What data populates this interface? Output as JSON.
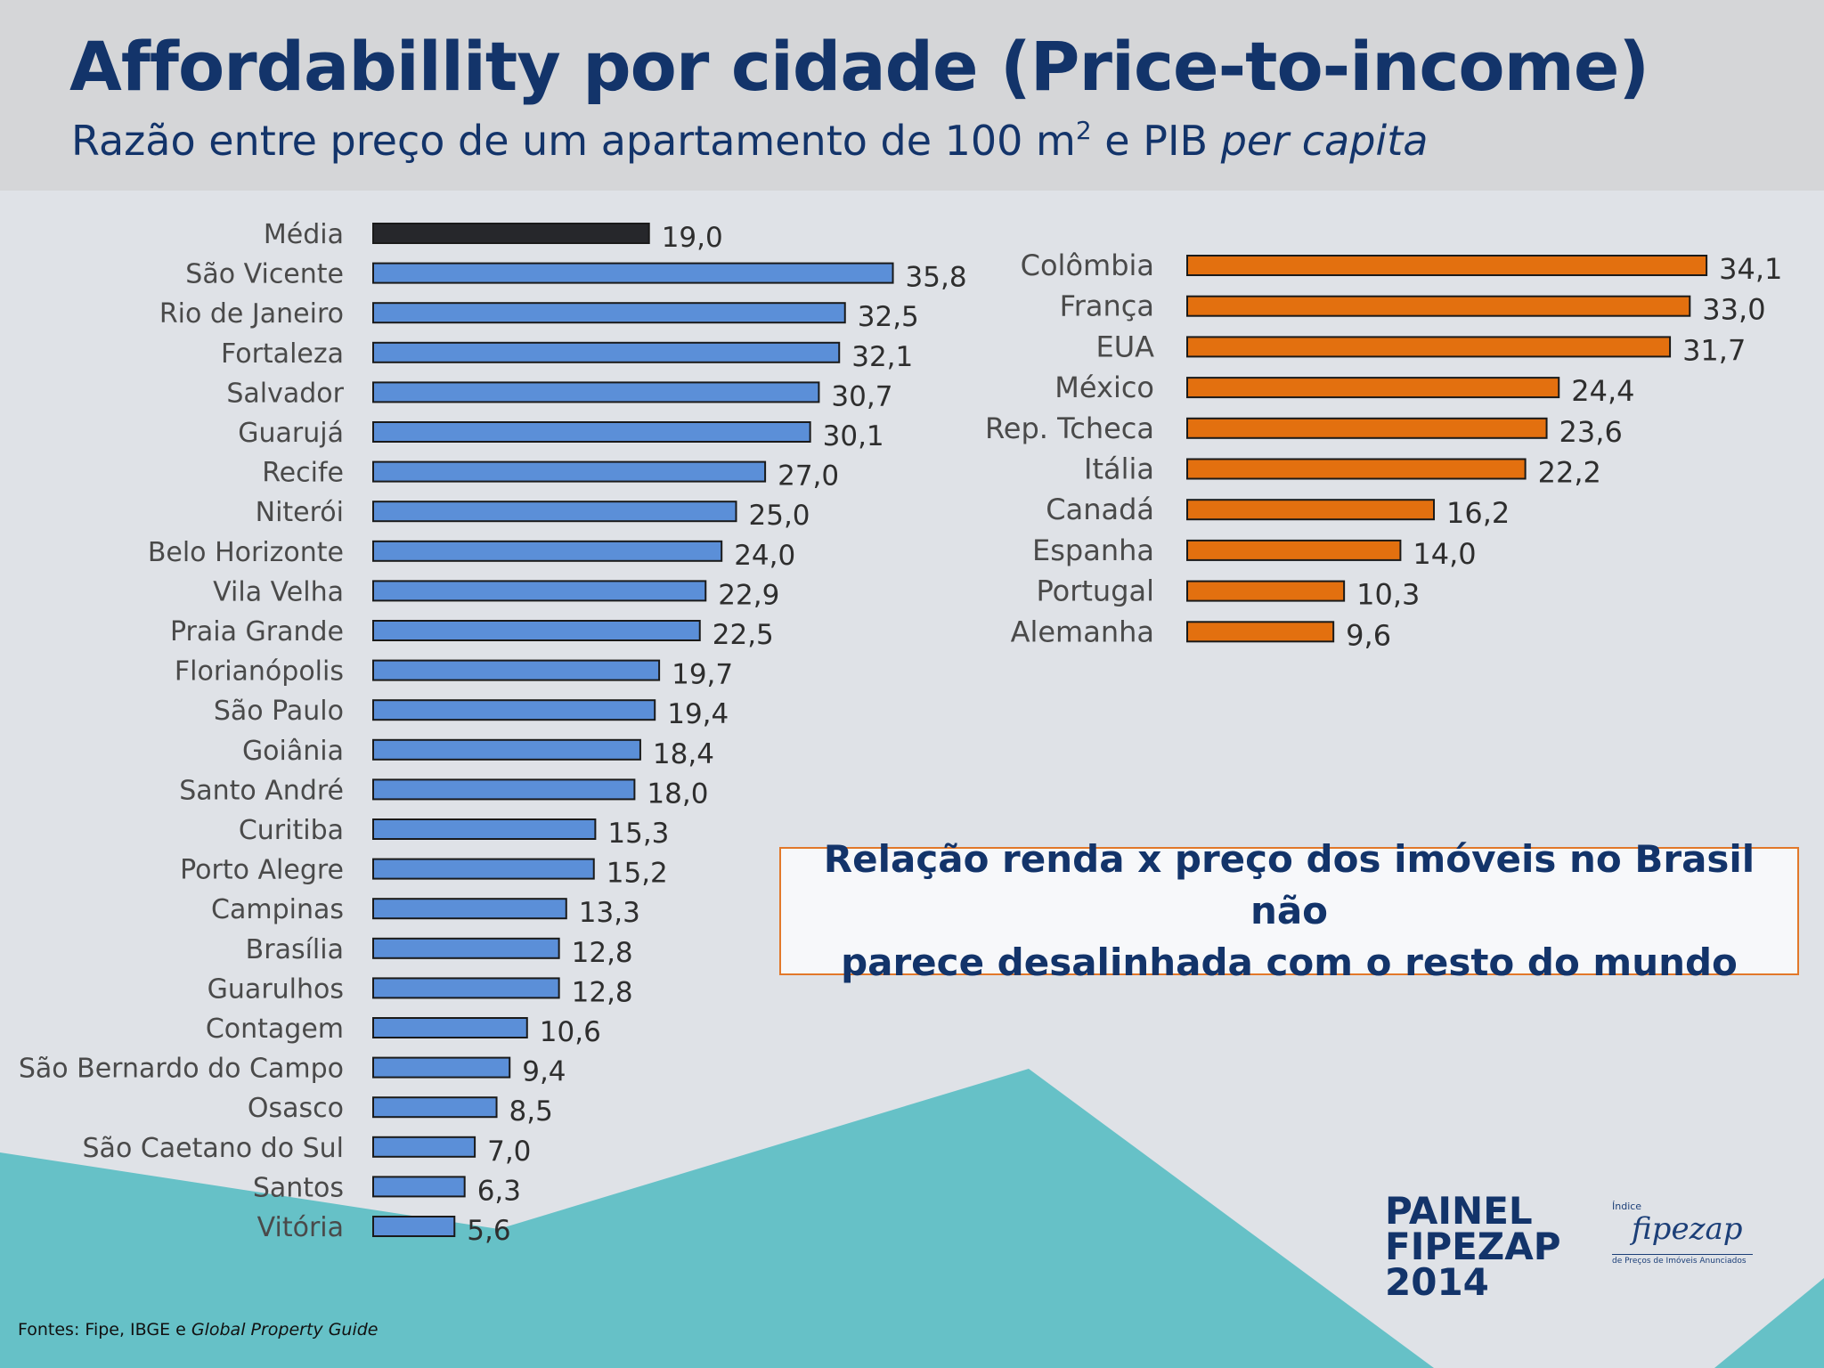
{
  "header": {
    "title": "Affordabillity por cidade (Price-to-income)",
    "subtitle_main": "Razão entre preço de um apartamento de 100 m",
    "subtitle_sup": "2",
    "subtitle_mid": " e PIB ",
    "subtitle_italic": "per capita"
  },
  "callout": {
    "line1": "Relação renda x preço dos imóveis no Brasil não",
    "line2": "parece desalinhada com o resto do mundo"
  },
  "logo": {
    "painel_line1": "PAINEL",
    "painel_line2": "FIPEZAP",
    "painel_line3": "2014",
    "index_small": "Índice",
    "brand": "fipezap",
    "tagline": "de Preços de Imóveis Anunciados"
  },
  "sources": {
    "prefix": "Fontes: Fipe, IBGE e ",
    "italic": "Global Property Guide"
  },
  "colors": {
    "media_bar": "#26272b",
    "brazil_bar": "#5b8fd8",
    "world_bar": "#e3700f",
    "bar_stroke": "#1a1a1a",
    "label_text": "#4a4a4a",
    "value_text": "#2e2e2e",
    "background_shape": "#66c1c7"
  },
  "chart_data": [
    {
      "type": "bar",
      "orientation": "horizontal",
      "title": "",
      "categories": [
        "Média",
        "São Vicente",
        "Rio de Janeiro",
        "Fortaleza",
        "Salvador",
        "Guarujá",
        "Recife",
        "Niterói",
        "Belo Horizonte",
        "Vila Velha",
        "Praia Grande",
        "Florianópolis",
        "São Paulo",
        "Goiânia",
        "Santo André",
        "Curitiba",
        "Porto Alegre",
        "Campinas",
        "Brasília",
        "Guarulhos",
        "Contagem",
        "São Bernardo do Campo",
        "Osasco",
        "São Caetano do Sul",
        "Santos",
        "Vitória"
      ],
      "values": [
        19.0,
        35.8,
        32.5,
        32.1,
        30.7,
        30.1,
        27.0,
        25.0,
        24.0,
        22.9,
        22.5,
        19.7,
        19.4,
        18.4,
        18.0,
        15.3,
        15.2,
        13.3,
        12.8,
        12.8,
        10.6,
        9.4,
        8.5,
        7.0,
        6.3,
        5.6
      ],
      "value_labels": [
        "19,0",
        "35,8",
        "32,5",
        "32,1",
        "30,7",
        "30,1",
        "27,0",
        "25,0",
        "24,0",
        "22,9",
        "22,5",
        "19,7",
        "19,4",
        "18,4",
        "18,0",
        "15,3",
        "15,2",
        "13,3",
        "12,8",
        "12,8",
        "10,6",
        "9,4",
        "8,5",
        "7,0",
        "6,3",
        "5,6"
      ],
      "highlight_first": true,
      "xlim": [
        0,
        40
      ],
      "axes_visible": false,
      "grid": false
    },
    {
      "type": "bar",
      "orientation": "horizontal",
      "title": "",
      "categories": [
        "Colômbia",
        "França",
        "EUA",
        "México",
        "Rep. Tcheca",
        "Itália",
        "Canadá",
        "Espanha",
        "Portugal",
        "Alemanha"
      ],
      "values": [
        34.1,
        33.0,
        31.7,
        24.4,
        23.6,
        22.2,
        16.2,
        14.0,
        10.3,
        9.6
      ],
      "value_labels": [
        "34,1",
        "33,0",
        "31,7",
        "24,4",
        "23,6",
        "22,2",
        "16,2",
        "14,0",
        "10,3",
        "9,6"
      ],
      "xlim": [
        0,
        40
      ],
      "axes_visible": false,
      "grid": false
    }
  ]
}
